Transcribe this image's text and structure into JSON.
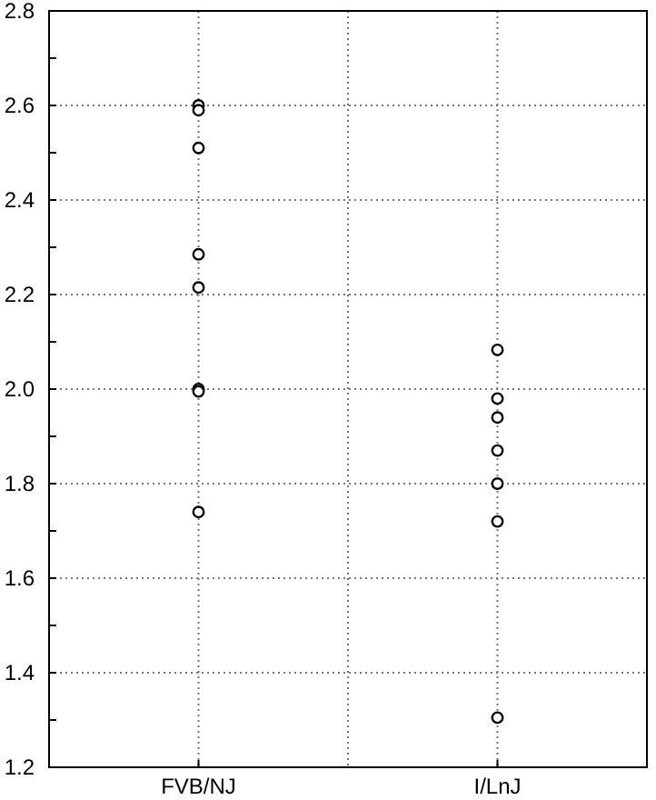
{
  "chart_data": {
    "type": "scatter",
    "categories": [
      "FVB/NJ",
      "I/LnJ"
    ],
    "series": [
      {
        "color": "#000000",
        "x": [
          "FVB/NJ",
          "FVB/NJ",
          "FVB/NJ",
          "FVB/NJ",
          "FVB/NJ",
          "FVB/NJ",
          "FVB/NJ",
          "FVB/NJ",
          "I/LnJ",
          "I/LnJ",
          "I/LnJ",
          "I/LnJ",
          "I/LnJ",
          "I/LnJ",
          "I/LnJ"
        ],
        "values": [
          2.6,
          2.59,
          2.51,
          2.285,
          2.215,
          2.0,
          1.995,
          1.74,
          2.083,
          1.98,
          1.94,
          1.87,
          1.8,
          1.72,
          1.305
        ]
      }
    ],
    "ylim": [
      1.2,
      2.8
    ],
    "yticks": [
      1.2,
      {
        "value": 1.3,
        "label": null
      },
      1.4,
      {
        "value": 1.5,
        "label": null
      },
      1.6,
      {
        "value": 1.7,
        "label": null
      },
      1.8,
      {
        "value": 1.9,
        "label": null
      },
      {
        "value": 2,
        "label": "2.0"
      },
      {
        "value": 2.1,
        "label": null
      },
      2.2,
      {
        "value": 2.3,
        "label": null
      },
      2.4,
      {
        "value": 2.5,
        "label": null
      },
      2.6,
      {
        "value": 2.7,
        "label": null
      },
      2.8
    ],
    "grid": true,
    "marker": "circle"
  }
}
